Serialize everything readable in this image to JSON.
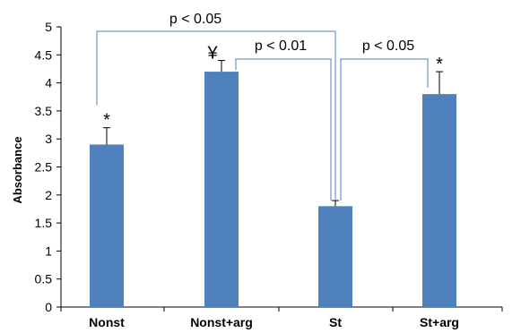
{
  "chart_data": {
    "type": "bar",
    "categories": [
      "Nonst",
      "Nonst+arg",
      "St",
      "St+arg"
    ],
    "values": [
      2.9,
      4.2,
      1.8,
      3.8
    ],
    "error": [
      0.3,
      0.2,
      0.1,
      0.4
    ],
    "markers": [
      "*",
      "¥",
      "",
      "*"
    ],
    "ylabel": "Absorbance",
    "xlabel": "",
    "ylim": [
      0,
      5
    ],
    "yticks": [
      "0",
      "0.5",
      "1",
      "1.5",
      "2",
      "2.5",
      "3",
      "3.5",
      "4",
      "4.5",
      "5"
    ],
    "grid": false,
    "bar_color": "#4f81bd",
    "bracket_color": "#4f81bd",
    "comparisons": [
      {
        "from": 0,
        "to": 2,
        "label": "p < 0.05"
      },
      {
        "from": 1,
        "to": 2,
        "label": "p < 0.01"
      },
      {
        "from": 2,
        "to": 3,
        "label": "p < 0.05"
      }
    ]
  }
}
